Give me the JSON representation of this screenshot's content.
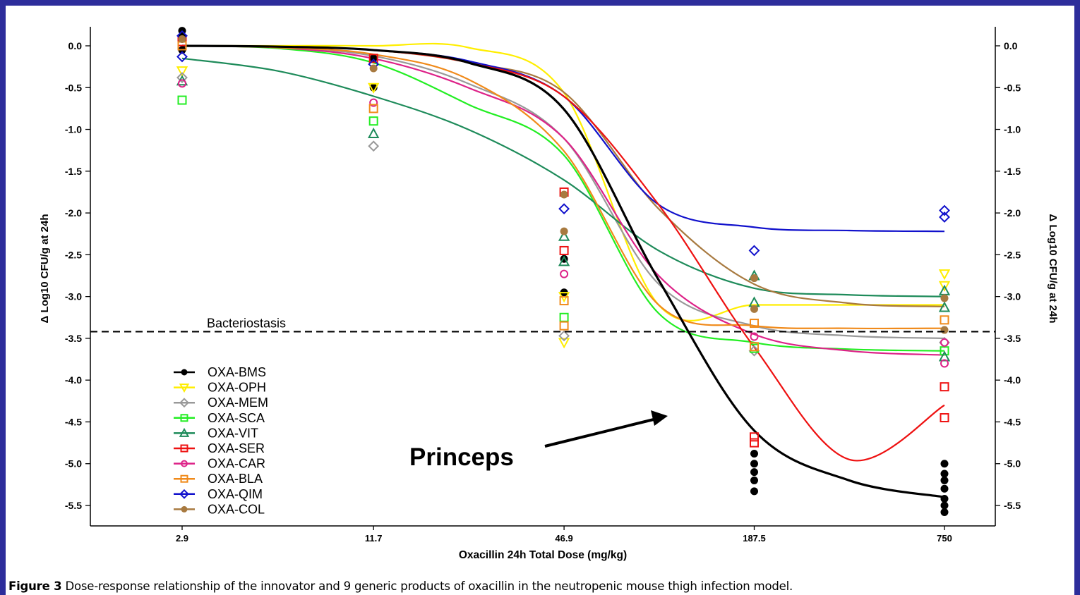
{
  "caption": {
    "label": "Figure 3",
    "text": "Dose-response relationship of the innovator and 9 generic products of oxacillin in the neutropenic mouse thigh infection model."
  },
  "annotation": {
    "text": "Princeps"
  },
  "colors": {
    "frame": "#2d2d9b"
  },
  "chart_data": {
    "type": "scatter",
    "xlabel": "Oxacillin 24h Total Dose (mg/kg)",
    "ylabel_left": "Δ Log10 CFU/g at 24h",
    "ylabel_right": "Δ Log10 CFU/g at 24h",
    "x_scale": "log",
    "x_ticks": [
      "2.9",
      "11.7",
      "46.9",
      "187.5",
      "750"
    ],
    "x_values": [
      2.9,
      11.7,
      46.9,
      187.5,
      750
    ],
    "ylim": [
      -5.8,
      0.2
    ],
    "y_ticks": [
      "0.0",
      "-0.5",
      "-1.0",
      "-1.5",
      "-2.0",
      "-2.5",
      "-3.0",
      "-3.5",
      "-4.0",
      "-4.5",
      "-5.0",
      "-5.5"
    ],
    "y_tick_values": [
      0,
      -0.5,
      -1,
      -1.5,
      -2,
      -2.5,
      -3,
      -3.5,
      -4,
      -4.5,
      -5,
      -5.5
    ],
    "reference_line": {
      "y": -3.42,
      "label": "Bacteriostasis"
    },
    "legend_position": "bottom-left",
    "series": [
      {
        "name": "OXA-BMS",
        "color": "#000000",
        "marker": "dot",
        "fit": [
          0,
          -0.01,
          -0.05,
          -0.2,
          -0.75,
          -2.8,
          -4.6,
          -5.2,
          -5.4
        ],
        "points": [
          [
            2.9,
            0.18
          ],
          [
            2.9,
            0.1
          ],
          [
            2.9,
            -0.05
          ],
          [
            11.7,
            -0.15
          ],
          [
            11.7,
            -0.5
          ],
          [
            46.9,
            -2.55
          ],
          [
            46.9,
            -2.95
          ],
          [
            187.5,
            -4.88
          ],
          [
            187.5,
            -5.0
          ],
          [
            187.5,
            -5.1
          ],
          [
            187.5,
            -5.2
          ],
          [
            187.5,
            -5.33
          ],
          [
            750,
            -5.0
          ],
          [
            750,
            -5.12
          ],
          [
            750,
            -5.2
          ],
          [
            750,
            -5.3
          ],
          [
            750,
            -5.42
          ],
          [
            750,
            -5.5
          ],
          [
            750,
            -5.58
          ]
        ]
      },
      {
        "name": "OXA-OPH",
        "color": "#ffee00",
        "marker": "triangle-down",
        "fit": [
          0,
          0,
          0,
          -0.02,
          -0.55,
          -3.1,
          -3.1,
          -3.1,
          -3.1
        ],
        "points": [
          [
            2.9,
            -0.3
          ],
          [
            11.7,
            -0.5
          ],
          [
            46.9,
            -3.55
          ],
          [
            46.9,
            -3.0
          ],
          [
            750,
            -2.73
          ],
          [
            750,
            -2.87
          ]
        ]
      },
      {
        "name": "OXA-MEM",
        "color": "#999999",
        "marker": "diamond",
        "fit": [
          0,
          -0.02,
          -0.12,
          -0.45,
          -1.1,
          -2.85,
          -3.35,
          -3.47,
          -3.5
        ],
        "points": [
          [
            2.9,
            -0.38
          ],
          [
            11.7,
            -1.2
          ],
          [
            46.9,
            -3.47
          ],
          [
            187.5,
            -3.65
          ],
          [
            750,
            -3.55
          ]
        ]
      },
      {
        "name": "OXA-SCA",
        "color": "#22ee22",
        "marker": "square",
        "fit": [
          0,
          -0.03,
          -0.2,
          -0.7,
          -1.3,
          -3.2,
          -3.55,
          -3.63,
          -3.65
        ],
        "points": [
          [
            2.9,
            -0.65
          ],
          [
            11.7,
            -0.9
          ],
          [
            46.9,
            -3.25
          ],
          [
            187.5,
            -3.62
          ],
          [
            750,
            -3.65
          ]
        ]
      },
      {
        "name": "OXA-VIT",
        "color": "#1e8b5a",
        "marker": "triangle-up",
        "fit": [
          -0.15,
          -0.3,
          -0.6,
          -1.0,
          -1.6,
          -2.45,
          -2.9,
          -2.98,
          -3.0
        ],
        "points": [
          [
            2.9,
            -0.42
          ],
          [
            11.7,
            -1.05
          ],
          [
            46.9,
            -2.28
          ],
          [
            46.9,
            -2.58
          ],
          [
            187.5,
            -2.75
          ],
          [
            187.5,
            -3.07
          ],
          [
            750,
            -2.93
          ],
          [
            750,
            -3.13
          ],
          [
            750,
            -3.72
          ]
        ]
      },
      {
        "name": "OXA-SER",
        "color": "#ee1111",
        "marker": "square",
        "fit": [
          0,
          -0.01,
          -0.05,
          -0.2,
          -0.6,
          -1.9,
          -3.6,
          -4.95,
          -4.3
        ],
        "points": [
          [
            2.9,
            0.05
          ],
          [
            11.7,
            -0.15
          ],
          [
            46.9,
            -1.75
          ],
          [
            46.9,
            -2.45
          ],
          [
            187.5,
            -4.68
          ],
          [
            187.5,
            -4.75
          ],
          [
            750,
            -4.08
          ],
          [
            750,
            -4.45
          ]
        ]
      },
      {
        "name": "OXA-CAR",
        "color": "#dd2288",
        "marker": "circle",
        "fit": [
          0,
          -0.02,
          -0.15,
          -0.5,
          -1.1,
          -2.75,
          -3.45,
          -3.65,
          -3.7
        ],
        "points": [
          [
            2.9,
            -0.45
          ],
          [
            11.7,
            -0.68
          ],
          [
            46.9,
            -2.73
          ],
          [
            187.5,
            -3.48
          ],
          [
            750,
            -3.55
          ],
          [
            750,
            -3.8
          ]
        ]
      },
      {
        "name": "OXA-BLA",
        "color": "#f08a1a",
        "marker": "square",
        "fit": [
          0,
          -0.02,
          -0.1,
          -0.4,
          -1.25,
          -3.1,
          -3.35,
          -3.38,
          -3.38
        ],
        "points": [
          [
            2.9,
            0.0
          ],
          [
            11.7,
            -0.75
          ],
          [
            46.9,
            -3.05
          ],
          [
            46.9,
            -3.35
          ],
          [
            187.5,
            -3.32
          ],
          [
            187.5,
            -3.6
          ],
          [
            750,
            -3.28
          ]
        ]
      },
      {
        "name": "OXA-QIM",
        "color": "#1111cc",
        "marker": "diamond",
        "fit": [
          0,
          -0.01,
          -0.05,
          -0.18,
          -0.6,
          -1.9,
          -2.17,
          -2.21,
          -2.22
        ],
        "points": [
          [
            2.9,
            0.12
          ],
          [
            2.9,
            -0.13
          ],
          [
            11.7,
            -0.22
          ],
          [
            46.9,
            -1.95
          ],
          [
            187.5,
            -2.45
          ],
          [
            750,
            -1.97
          ],
          [
            750,
            -2.05
          ]
        ]
      },
      {
        "name": "OXA-COL",
        "color": "#a87a40",
        "marker": "dot",
        "fit": [
          0,
          -0.01,
          -0.05,
          -0.2,
          -0.55,
          -1.95,
          -2.85,
          -3.08,
          -3.12
        ],
        "points": [
          [
            2.9,
            0.08
          ],
          [
            11.7,
            -0.27
          ],
          [
            46.9,
            -1.78
          ],
          [
            46.9,
            -2.22
          ],
          [
            187.5,
            -2.78
          ],
          [
            187.5,
            -3.15
          ],
          [
            750,
            -3.02
          ],
          [
            750,
            -3.4
          ]
        ]
      }
    ]
  }
}
